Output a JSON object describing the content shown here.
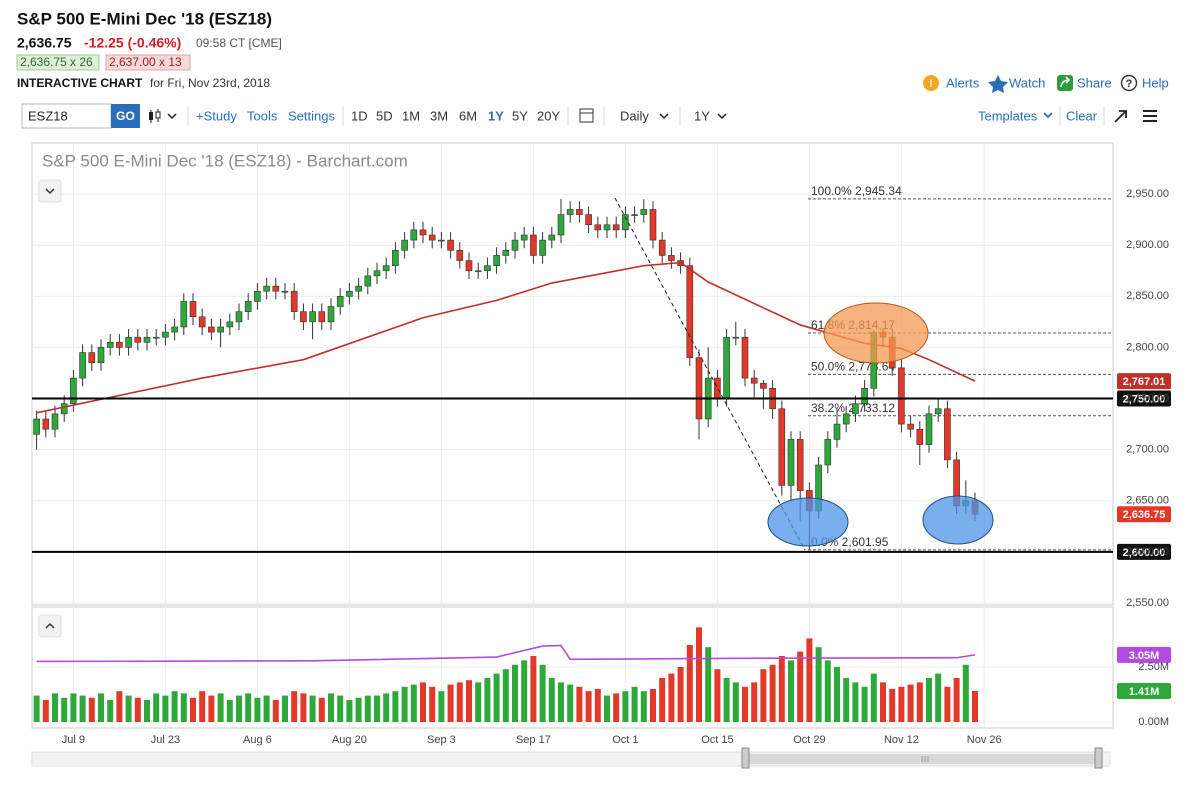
{
  "header": {
    "title": "S&P 500 E-Mini Dec '18 (ESZ18)",
    "last_price": "2,636.75",
    "change": "-12.25 (-0.46%)",
    "time": "09:58 CT [CME]",
    "bid": "2,636.75 x 26",
    "ask": "2,637.00 x 13",
    "section": "INTERACTIVE CHART",
    "date": "for Fri, Nov 23rd, 2018",
    "actions": [
      "Alerts",
      "Watch",
      "Share",
      "Help"
    ]
  },
  "toolbar": {
    "symbol": "ESZ18",
    "go": "GO",
    "links": [
      "+Study",
      "Tools",
      "Settings"
    ],
    "ranges": [
      "1D",
      "5D",
      "1M",
      "3M",
      "6M",
      "1Y",
      "5Y",
      "20Y"
    ],
    "interval": "Daily",
    "period": "1Y",
    "templates": "Templates",
    "clear": "Clear"
  },
  "chart_data": {
    "type": "candlestick",
    "title": "S&P 500 E-Mini Dec '18 (ESZ18) - Barchart.com",
    "up_color": "#2ea83a",
    "down_color": "#e2382a",
    "grid": true,
    "xlim": [
      -0.5,
      117
    ],
    "xticks": [
      {
        "value": 4,
        "label": "Jul 9"
      },
      {
        "value": 14,
        "label": "Jul 23"
      },
      {
        "value": 24,
        "label": "Aug 6"
      },
      {
        "value": 34,
        "label": "Aug 20"
      },
      {
        "value": 44,
        "label": "Sep 3"
      },
      {
        "value": 54,
        "label": "Sep 17"
      },
      {
        "value": 64,
        "label": "Oct 1"
      },
      {
        "value": 74,
        "label": "Oct 15"
      },
      {
        "value": 84,
        "label": "Oct 29"
      },
      {
        "value": 94,
        "label": "Nov 12"
      },
      {
        "value": 103,
        "label": "Nov 26"
      }
    ],
    "ylim": [
      2548,
      3000
    ],
    "yticks": [
      {
        "value": 2550,
        "label": "2,550.00"
      },
      {
        "value": 2600,
        "label": "2,600.00"
      },
      {
        "value": 2650,
        "label": "2,650.00"
      },
      {
        "value": 2700,
        "label": "2,700.00"
      },
      {
        "value": 2750,
        "label": "2,750.00"
      },
      {
        "value": 2800,
        "label": "2,800.00"
      },
      {
        "value": 2850,
        "label": "2,850.00"
      },
      {
        "value": 2900,
        "label": "2,900.00"
      },
      {
        "value": 2950,
        "label": "2,950.00"
      }
    ],
    "open": [
      2715,
      2730,
      2720,
      2735,
      2745,
      2770,
      2795,
      2785,
      2800,
      2805,
      2800,
      2810,
      2805,
      2810,
      2810,
      2815,
      2820,
      2845,
      2830,
      2820,
      2815,
      2820,
      2825,
      2835,
      2845,
      2855,
      2860,
      2855,
      2855,
      2835,
      2825,
      2835,
      2825,
      2840,
      2850,
      2855,
      2860,
      2870,
      2875,
      2880,
      2895,
      2905,
      2915,
      2910,
      2905,
      2905,
      2895,
      2885,
      2875,
      2875,
      2880,
      2890,
      2895,
      2905,
      2910,
      2890,
      2905,
      2910,
      2930,
      2935,
      2930,
      2920,
      2915,
      2920,
      2915,
      2930,
      2930,
      2935,
      2905,
      2890,
      2885,
      2880,
      2790,
      2730,
      2770,
      2750,
      2810,
      2810,
      2770,
      2765,
      2760,
      2740,
      2665,
      2710,
      2660,
      2640,
      2685,
      2710,
      2725,
      2735,
      2745,
      2760,
      2815,
      2810,
      2780,
      2725,
      2720,
      2705,
      2735,
      2740,
      2690,
      2645,
      2650
    ],
    "high": [
      2738,
      2738,
      2743,
      2753,
      2778,
      2803,
      2803,
      2808,
      2813,
      2813,
      2818,
      2818,
      2818,
      2818,
      2823,
      2828,
      2853,
      2853,
      2838,
      2828,
      2828,
      2833,
      2843,
      2853,
      2863,
      2868,
      2868,
      2863,
      2863,
      2843,
      2843,
      2843,
      2848,
      2858,
      2863,
      2868,
      2878,
      2883,
      2888,
      2903,
      2913,
      2923,
      2923,
      2918,
      2913,
      2913,
      2903,
      2893,
      2883,
      2888,
      2898,
      2903,
      2913,
      2918,
      2918,
      2913,
      2918,
      2945.34,
      2943,
      2943,
      2938,
      2928,
      2928,
      2928,
      2938,
      2938,
      2945,
      2943,
      2913,
      2898,
      2893,
      2888,
      2798,
      2800,
      2778,
      2818,
      2825,
      2818,
      2778,
      2768,
      2768,
      2748,
      2718,
      2718,
      2668,
      2693,
      2718,
      2740,
      2743,
      2753,
      2768,
      2817,
      2818,
      2818,
      2788,
      2733,
      2728,
      2743,
      2750,
      2748,
      2698,
      2670,
      2658
    ],
    "low": [
      2700,
      2712,
      2712,
      2727,
      2737,
      2762,
      2777,
      2777,
      2792,
      2792,
      2792,
      2797,
      2797,
      2802,
      2802,
      2807,
      2812,
      2822,
      2812,
      2807,
      2800,
      2812,
      2817,
      2827,
      2837,
      2847,
      2847,
      2847,
      2827,
      2817,
      2808,
      2817,
      2817,
      2832,
      2842,
      2847,
      2852,
      2862,
      2867,
      2872,
      2887,
      2897,
      2902,
      2897,
      2897,
      2887,
      2877,
      2867,
      2867,
      2867,
      2872,
      2882,
      2887,
      2897,
      2882,
      2882,
      2897,
      2902,
      2922,
      2922,
      2912,
      2907,
      2907,
      2907,
      2907,
      2922,
      2922,
      2897,
      2882,
      2877,
      2872,
      2782,
      2710,
      2722,
      2742,
      2742,
      2802,
      2762,
      2750,
      2740,
      2730,
      2655,
      2650,
      2630,
      2601.95,
      2632,
      2677,
      2702,
      2717,
      2727,
      2737,
      2752,
      2802,
      2772,
      2717,
      2712,
      2685,
      2697,
      2727,
      2682,
      2637,
      2637,
      2630
    ],
    "close": [
      2730,
      2720,
      2735,
      2745,
      2770,
      2795,
      2785,
      2800,
      2805,
      2800,
      2810,
      2805,
      2810,
      2810,
      2815,
      2820,
      2845,
      2830,
      2820,
      2815,
      2820,
      2825,
      2835,
      2845,
      2855,
      2860,
      2855,
      2855,
      2835,
      2825,
      2835,
      2825,
      2840,
      2850,
      2855,
      2860,
      2870,
      2875,
      2880,
      2895,
      2905,
      2915,
      2910,
      2905,
      2905,
      2895,
      2885,
      2875,
      2875,
      2880,
      2890,
      2895,
      2905,
      2910,
      2890,
      2905,
      2910,
      2930,
      2935,
      2930,
      2920,
      2915,
      2920,
      2915,
      2930,
      2930,
      2935,
      2905,
      2890,
      2885,
      2880,
      2790,
      2730,
      2770,
      2750,
      2810,
      2810,
      2770,
      2765,
      2760,
      2740,
      2665,
      2710,
      2660,
      2640,
      2685,
      2710,
      2725,
      2735,
      2745,
      2760,
      2815,
      2810,
      2780,
      2725,
      2720,
      2705,
      2735,
      2740,
      2690,
      2645,
      2650,
      2636.75
    ],
    "moving_average": {
      "color": "#c0302a",
      "x": [
        0,
        18,
        29,
        42,
        50,
        56,
        66,
        70,
        73,
        83,
        90,
        94,
        97,
        102
      ],
      "values": [
        2736,
        2770,
        2788,
        2829,
        2846,
        2863,
        2880,
        2883,
        2864,
        2822,
        2804,
        2799,
        2788,
        2767.01
      ],
      "value_labels": [
        null,
        null,
        null,
        null,
        null,
        null,
        null,
        null,
        null,
        null,
        null,
        null,
        null,
        "2,767.01"
      ]
    },
    "levels": [
      {
        "value": 2750,
        "label": "2,750.00"
      },
      {
        "value": 2600,
        "label": "2,600.00"
      }
    ],
    "fibonacci": [
      {
        "value": 2945.34,
        "label": "100.0% 2,945.34"
      },
      {
        "value": 2814.17,
        "label": "61.8% 2,814.17"
      },
      {
        "value": 2773.64,
        "label": "50.0% 2,773.64"
      },
      {
        "value": 2733.12,
        "label": "38.2% 2,733.12"
      },
      {
        "value": 2601.95,
        "label": "0.0% 2,601.95"
      }
    ],
    "vlim": [
      0,
      5.18
    ],
    "vticks": [
      {
        "value": 0,
        "label": "0.00M"
      },
      {
        "value": 2.5,
        "label": "2.50M"
      }
    ],
    "volume": {
      "values": [
        1.2,
        1.0,
        1.3,
        1.1,
        1.3,
        1.2,
        1.1,
        1.3,
        1.0,
        1.4,
        1.2,
        1.1,
        1.0,
        1.3,
        1.2,
        1.4,
        1.3,
        1.1,
        1.4,
        1.2,
        1.3,
        1.0,
        1.2,
        1.3,
        1.1,
        1.2,
        1.0,
        1.2,
        1.4,
        1.3,
        1.2,
        1.1,
        1.3,
        1.2,
        1.0,
        1.1,
        1.2,
        1.2,
        1.3,
        1.4,
        1.6,
        1.7,
        1.8,
        1.6,
        1.4,
        1.7,
        1.8,
        1.9,
        1.8,
        2.0,
        2.2,
        2.4,
        2.6,
        2.8,
        3.0,
        2.6,
        2.0,
        1.8,
        1.7,
        1.6,
        1.4,
        1.5,
        1.2,
        1.3,
        1.4,
        1.6,
        1.4,
        1.5,
        2.0,
        2.2,
        2.5,
        3.5,
        4.3,
        3.4,
        2.4,
        2.0,
        1.8,
        1.6,
        1.8,
        2.4,
        2.6,
        3.0,
        2.8,
        3.2,
        3.8,
        3.4,
        2.8,
        2.5,
        2.0,
        1.8,
        1.6,
        2.2,
        1.8,
        1.5,
        1.6,
        1.7,
        1.8,
        2.0,
        2.2,
        1.6,
        2.0,
        2.6,
        1.41
      ],
      "value_labels": [
        null,
        null,
        null,
        null,
        null,
        null,
        null,
        null,
        null,
        null,
        null,
        null,
        null,
        null,
        null,
        null,
        null,
        null,
        null,
        null,
        null,
        null,
        null,
        null,
        null,
        null,
        null,
        null,
        null,
        null,
        null,
        null,
        null,
        null,
        null,
        null,
        null,
        null,
        null,
        null,
        null,
        null,
        null,
        null,
        null,
        null,
        null,
        null,
        null,
        null,
        null,
        null,
        null,
        null,
        null,
        null,
        null,
        null,
        null,
        null,
        null,
        null,
        null,
        null,
        null,
        null,
        null,
        null,
        null,
        null,
        null,
        null,
        null,
        null,
        null,
        null,
        null,
        null,
        null,
        null,
        null,
        null,
        null,
        null,
        null,
        null,
        null,
        null,
        null,
        null,
        null,
        null,
        null,
        null,
        null,
        null,
        null,
        null,
        null,
        null,
        null,
        null,
        "1.41M"
      ]
    },
    "volume_average": {
      "color": "#b24be0",
      "x": [
        0,
        30,
        50,
        55,
        57,
        58,
        80,
        100,
        102
      ],
      "values": [
        2.75,
        2.78,
        2.95,
        3.45,
        3.48,
        2.85,
        2.9,
        2.92,
        3.05
      ],
      "value_labels": [
        null,
        null,
        null,
        null,
        null,
        null,
        null,
        null,
        "3.05M"
      ]
    }
  }
}
